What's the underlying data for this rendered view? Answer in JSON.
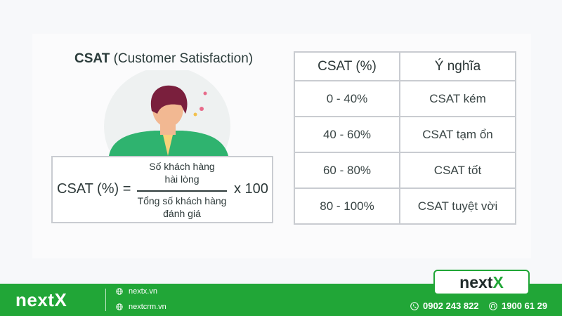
{
  "title": {
    "bold": "CSAT",
    "rest": " (Customer Satisfaction)"
  },
  "formula": {
    "lhs": "CSAT (%) =",
    "numerator": [
      "Số khách hàng",
      "hài lòng"
    ],
    "denominator": [
      "Tổng số khách hàng",
      "đánh giá"
    ],
    "rhs": "x 100"
  },
  "table": {
    "headers": [
      "CSAT (%)",
      "Ý nghĩa"
    ],
    "rows": [
      {
        "range": "0 - 40%",
        "meaning": "CSAT kém"
      },
      {
        "range": "40 - 60%",
        "meaning": "CSAT tạm ổn"
      },
      {
        "range": "60 - 80%",
        "meaning": "CSAT tốt"
      },
      {
        "range": "80 - 100%",
        "meaning": "CSAT tuyệt vời"
      }
    ]
  },
  "footer": {
    "brand": "nextX",
    "links": [
      "nextx.vn",
      "nextcrm.vn"
    ],
    "logo": {
      "prefix": "next",
      "accent": "X"
    },
    "phones": [
      "0902 243 822",
      "1900 61 29"
    ],
    "icons": [
      "globe-icon",
      "phone-icon",
      "headset-icon"
    ]
  },
  "colors": {
    "brand_green": "#21a637",
    "border": "#c9ccd1",
    "text": "#2e3a3a"
  }
}
